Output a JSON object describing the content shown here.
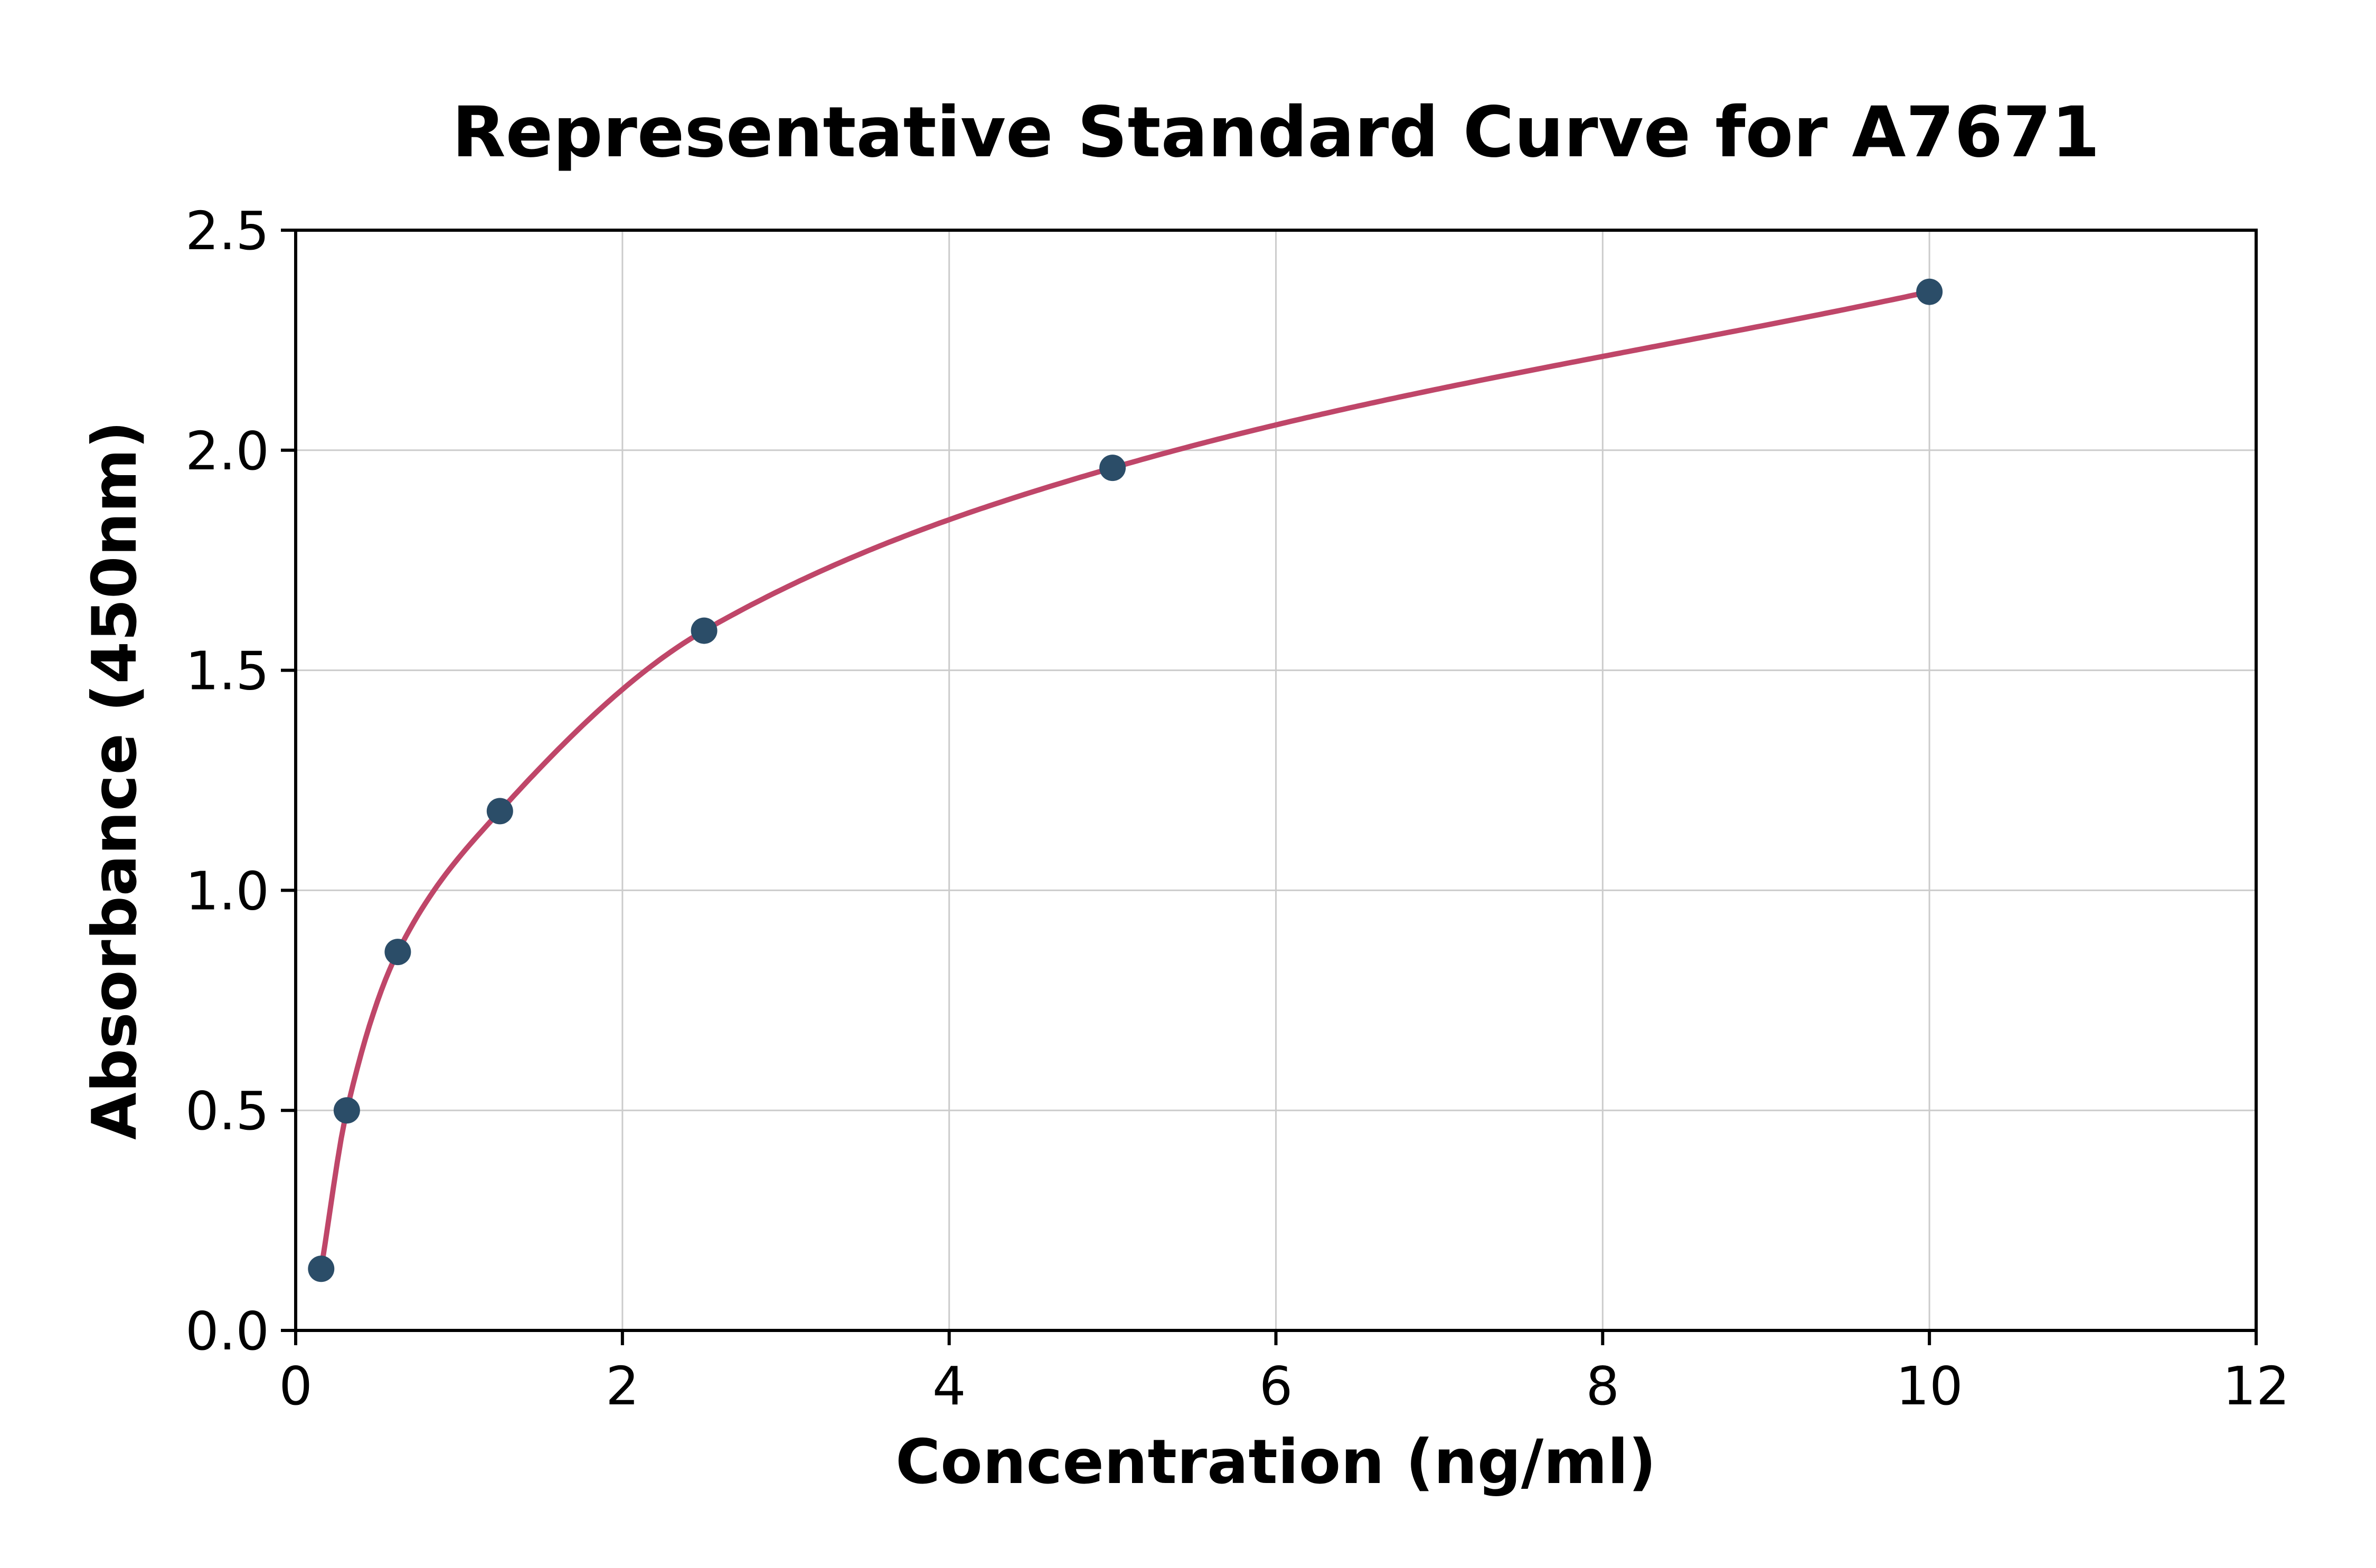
{
  "chart_data": {
    "type": "scatter",
    "title": "Representative Standard Curve for A7671",
    "xlabel": "Concentration (ng/ml)",
    "ylabel": "Absorbance (450nm)",
    "xlim": [
      0,
      12
    ],
    "ylim": [
      0,
      2.5
    ],
    "xticks": [
      0,
      2,
      4,
      6,
      8,
      10,
      12
    ],
    "xtick_labels": [
      "0",
      "2",
      "4",
      "6",
      "8",
      "10",
      "12"
    ],
    "yticks": [
      0,
      0.5,
      1,
      1.5,
      2,
      2.5
    ],
    "ytick_labels": [
      "0.0",
      "0.5",
      "1.0",
      "1.5",
      "2.0",
      "2.5"
    ],
    "grid": true,
    "legend_position": "none",
    "series": [
      {
        "name": "standards",
        "x": [
          0.156,
          0.313,
          0.625,
          1.25,
          2.5,
          5,
          10
        ],
        "y": [
          0.14,
          0.5,
          0.86,
          1.18,
          1.59,
          1.96,
          2.36
        ],
        "marker": "circle",
        "marker_color": "#2b4d68",
        "curve_color": "#bf4669"
      }
    ],
    "grid_color": "#cccccc",
    "axis_color": "#000000",
    "background_color": "#ffffff"
  }
}
